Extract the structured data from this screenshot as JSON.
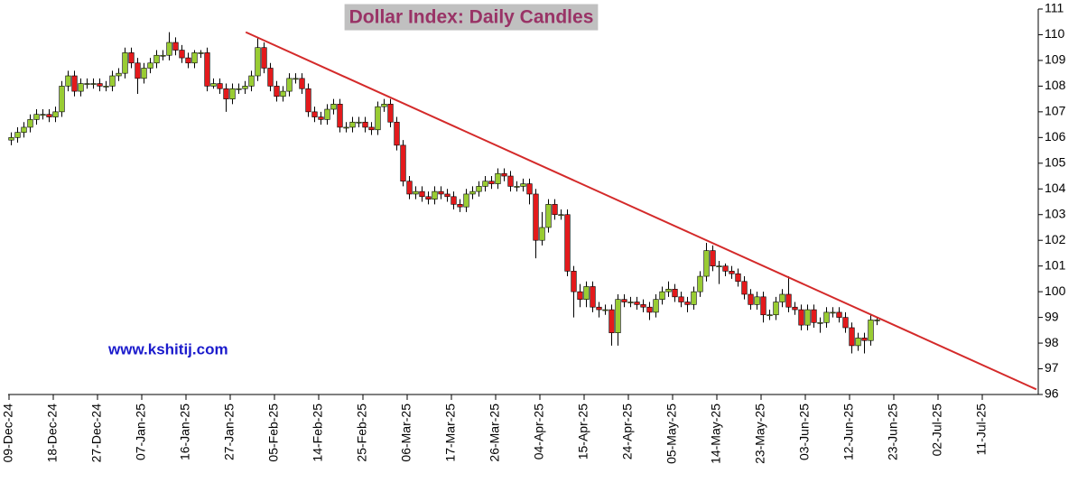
{
  "chart_data": {
    "type": "candlestick",
    "title": "Dollar Index:  Daily Candles",
    "watermark": "www.kshitij.com",
    "categories": [
      "09-Dec-24",
      null,
      null,
      null,
      null,
      null,
      null,
      "18-Dec-24",
      null,
      null,
      null,
      null,
      null,
      null,
      "27-Dec-24",
      null,
      null,
      null,
      null,
      null,
      null,
      "07-Jan-25",
      null,
      null,
      null,
      null,
      null,
      null,
      "16-Jan-25",
      null,
      null,
      null,
      null,
      null,
      null,
      "27-Jan-25",
      null,
      null,
      null,
      null,
      null,
      null,
      "05-Feb-25",
      null,
      null,
      null,
      null,
      null,
      null,
      "14-Feb-25",
      null,
      null,
      null,
      null,
      null,
      null,
      "25-Feb-25",
      null,
      null,
      null,
      null,
      null,
      null,
      "06-Mar-25",
      null,
      null,
      null,
      null,
      null,
      null,
      "17-Mar-25",
      null,
      null,
      null,
      null,
      null,
      null,
      "26-Mar-25",
      null,
      null,
      null,
      null,
      null,
      null,
      "04-Apr-25",
      null,
      null,
      null,
      null,
      null,
      null,
      "15-Apr-25",
      null,
      null,
      null,
      null,
      null,
      null,
      "24-Apr-25",
      null,
      null,
      null,
      null,
      null,
      null,
      "05-May-25",
      null,
      null,
      null,
      null,
      null,
      null,
      "14-May-25",
      null,
      null,
      null,
      null,
      null,
      null,
      "23-May-25",
      null,
      null,
      null,
      null,
      null,
      null,
      "03-Jun-25",
      null,
      null,
      null,
      null,
      null,
      null,
      "12-Jun-25",
      null,
      null,
      null,
      null,
      null,
      null,
      "23-Jun-25",
      null,
      null,
      null,
      null,
      null,
      null,
      "02-Jul-25",
      null,
      null,
      null,
      null,
      null,
      null,
      "11-Jul-25",
      null,
      null,
      null,
      null,
      null,
      null,
      null,
      null
    ],
    "open": [
      105.9,
      106.0,
      106.2,
      106.4,
      106.7,
      106.9,
      106.9,
      106.8,
      107.0,
      108.0,
      108.4,
      107.8,
      108.1,
      108.1,
      108.1,
      108.0,
      108.0,
      108.4,
      108.5,
      109.3,
      108.9,
      108.3,
      108.7,
      108.9,
      109.2,
      109.2,
      109.7,
      109.4,
      109.1,
      108.9,
      109.3,
      109.3,
      108.0,
      108.1,
      107.9,
      107.5,
      107.9,
      107.9,
      108.0,
      108.4,
      109.5,
      108.7,
      108.0,
      107.6,
      107.8,
      108.3,
      108.3,
      107.9,
      107.0,
      106.8,
      106.7,
      107.1,
      107.3,
      106.4,
      106.4,
      106.6,
      106.6,
      106.4,
      106.3,
      107.2,
      107.3,
      106.6,
      105.7,
      104.3,
      103.8,
      103.9,
      103.7,
      103.6,
      103.9,
      103.8,
      103.7,
      103.4,
      103.3,
      103.8,
      103.9,
      104.1,
      104.3,
      104.2,
      104.6,
      104.5,
      104.1,
      104.1,
      104.2,
      103.8,
      102.0,
      102.5,
      103.4,
      103.0,
      103.0,
      100.8,
      100.0,
      99.7,
      100.2,
      99.4,
      99.3,
      99.3,
      98.4,
      99.7,
      99.6,
      99.6,
      99.5,
      99.4,
      99.2,
      99.7,
      100.0,
      100.1,
      99.8,
      99.6,
      99.5,
      100.0,
      100.6,
      101.6,
      101.0,
      101.0,
      100.8,
      100.7,
      100.4,
      99.9,
      99.5,
      99.8,
      99.1,
      99.1,
      99.6,
      99.9,
      99.4,
      99.3,
      98.7,
      99.3,
      98.8,
      98.8,
      99.2,
      99.2,
      99.0,
      98.6,
      97.9,
      98.2,
      98.1,
      98.9,
      null,
      null,
      null,
      null,
      null,
      null,
      null,
      null,
      null,
      null,
      null,
      null,
      null,
      null,
      null,
      null,
      null,
      null,
      null,
      null,
      null,
      null,
      null,
      null,
      null
    ],
    "high": [
      106.2,
      106.4,
      106.6,
      106.9,
      107.1,
      107.1,
      107.1,
      107.2,
      108.2,
      108.6,
      108.6,
      108.3,
      108.3,
      108.3,
      108.3,
      108.2,
      108.6,
      108.7,
      109.5,
      109.5,
      109.1,
      108.9,
      109.1,
      109.4,
      109.4,
      110.1,
      109.9,
      109.6,
      109.3,
      109.4,
      109.4,
      109.5,
      108.3,
      108.3,
      108.1,
      108.1,
      108.1,
      108.2,
      108.6,
      109.9,
      109.7,
      108.9,
      108.2,
      108.0,
      108.5,
      108.5,
      108.5,
      108.1,
      107.2,
      107.0,
      107.3,
      107.5,
      107.5,
      106.6,
      106.8,
      106.8,
      106.8,
      106.6,
      107.4,
      107.5,
      107.5,
      106.8,
      105.9,
      104.5,
      104.1,
      104.1,
      103.9,
      104.1,
      104.1,
      104.0,
      103.9,
      103.6,
      104.0,
      104.1,
      104.3,
      104.5,
      104.5,
      104.8,
      104.8,
      104.7,
      104.3,
      104.4,
      104.4,
      104.0,
      103.1,
      103.6,
      103.6,
      103.2,
      103.2,
      101.0,
      100.3,
      100.4,
      100.4,
      99.6,
      99.5,
      99.5,
      99.9,
      99.9,
      99.8,
      99.8,
      99.7,
      99.6,
      99.9,
      100.2,
      100.4,
      100.3,
      100.0,
      99.8,
      100.2,
      100.8,
      101.9,
      101.8,
      101.2,
      101.1,
      101.0,
      100.9,
      100.6,
      100.1,
      100.0,
      100.0,
      99.3,
      99.8,
      100.1,
      100.6,
      99.6,
      99.5,
      99.5,
      99.5,
      99.0,
      99.4,
      99.4,
      99.4,
      99.2,
      98.8,
      98.4,
      98.4,
      99.1,
      99.0,
      null,
      null,
      null,
      null,
      null,
      null,
      null,
      null,
      null,
      null,
      null,
      null,
      null,
      null,
      null,
      null,
      null,
      null,
      null,
      null,
      null,
      null,
      null,
      null,
      null
    ],
    "low": [
      105.7,
      105.8,
      106.0,
      106.2,
      106.5,
      106.7,
      106.6,
      106.6,
      106.8,
      107.8,
      107.6,
      107.6,
      107.9,
      107.9,
      107.8,
      107.8,
      107.8,
      108.2,
      108.3,
      108.7,
      107.7,
      108.1,
      108.5,
      108.7,
      109.0,
      109.0,
      109.2,
      108.9,
      108.7,
      108.7,
      109.1,
      107.8,
      107.9,
      107.7,
      107.0,
      107.3,
      107.7,
      107.7,
      107.8,
      108.2,
      108.5,
      107.8,
      107.4,
      107.4,
      107.6,
      108.1,
      107.7,
      106.8,
      106.6,
      106.5,
      106.5,
      106.9,
      106.2,
      106.2,
      106.2,
      106.4,
      106.2,
      106.1,
      106.1,
      107.0,
      106.4,
      105.5,
      104.1,
      103.6,
      103.6,
      103.5,
      103.4,
      103.4,
      103.6,
      103.5,
      103.2,
      103.1,
      103.1,
      103.6,
      103.7,
      103.9,
      104.0,
      104.0,
      104.3,
      103.9,
      103.9,
      103.9,
      103.4,
      101.3,
      101.8,
      102.3,
      102.8,
      102.8,
      100.6,
      99.0,
      99.4,
      99.4,
      99.2,
      99.0,
      99.1,
      97.9,
      97.9,
      99.4,
      99.4,
      99.3,
      99.2,
      98.9,
      99.0,
      99.5,
      99.8,
      99.6,
      99.4,
      99.2,
      99.3,
      99.8,
      100.4,
      100.8,
      100.3,
      100.6,
      100.5,
      100.2,
      99.7,
      99.3,
      99.3,
      98.8,
      98.9,
      98.9,
      99.4,
      99.2,
      99.1,
      98.5,
      98.5,
      98.6,
      98.4,
      98.6,
      99.0,
      98.8,
      98.4,
      97.6,
      97.7,
      97.6,
      97.9,
      98.7,
      null,
      null,
      null,
      null,
      null,
      null,
      null,
      null,
      null,
      null,
      null,
      null,
      null,
      null,
      null,
      null,
      null,
      null,
      null,
      null,
      null,
      null,
      null,
      null,
      null
    ],
    "close": [
      106.0,
      106.2,
      106.4,
      106.7,
      106.9,
      106.9,
      106.8,
      107.0,
      108.0,
      108.4,
      107.8,
      108.1,
      108.1,
      108.1,
      108.0,
      108.0,
      108.4,
      108.5,
      109.3,
      108.9,
      108.3,
      108.7,
      108.9,
      109.2,
      109.2,
      109.7,
      109.4,
      109.1,
      108.9,
      109.3,
      109.3,
      108.0,
      108.1,
      107.9,
      107.5,
      107.9,
      107.9,
      108.0,
      108.4,
      109.5,
      108.7,
      108.0,
      107.6,
      107.8,
      108.3,
      108.3,
      107.9,
      107.0,
      106.8,
      106.7,
      107.1,
      107.3,
      106.4,
      106.4,
      106.6,
      106.6,
      106.4,
      106.3,
      107.2,
      107.3,
      106.6,
      105.7,
      104.3,
      103.8,
      103.9,
      103.7,
      103.6,
      103.9,
      103.8,
      103.7,
      103.4,
      103.3,
      103.8,
      103.9,
      104.1,
      104.3,
      104.2,
      104.6,
      104.5,
      104.1,
      104.1,
      104.2,
      103.8,
      102.0,
      102.5,
      103.4,
      103.0,
      103.0,
      100.8,
      100.0,
      99.7,
      100.2,
      99.4,
      99.3,
      99.3,
      98.4,
      99.7,
      99.6,
      99.6,
      99.5,
      99.4,
      99.2,
      99.7,
      100.0,
      100.1,
      99.8,
      99.6,
      99.5,
      100.0,
      100.6,
      101.6,
      101.0,
      101.0,
      100.8,
      100.7,
      100.4,
      99.9,
      99.5,
      99.8,
      99.1,
      99.1,
      99.6,
      99.9,
      99.4,
      99.3,
      98.7,
      99.3,
      98.8,
      98.8,
      99.2,
      99.2,
      99.0,
      98.6,
      97.9,
      98.2,
      98.1,
      98.9,
      98.9,
      null,
      null,
      null,
      null,
      null,
      null,
      null,
      null,
      null,
      null,
      null,
      null,
      null,
      null,
      null,
      null,
      null,
      null,
      null,
      null,
      null,
      null,
      null,
      null,
      null
    ],
    "up_color": "#99cc33",
    "down_color": "#e31a1c",
    "trendline": {
      "x": [
        37.1,
        162.2
      ],
      "y": [
        110.1,
        96.2
      ],
      "color": "#d42a2a"
    },
    "ylim": [
      96,
      111
    ],
    "yticks": [
      96,
      97,
      98,
      99,
      100,
      101,
      102,
      103,
      104,
      105,
      106,
      107,
      108,
      109,
      110,
      111
    ],
    "grid": false
  }
}
